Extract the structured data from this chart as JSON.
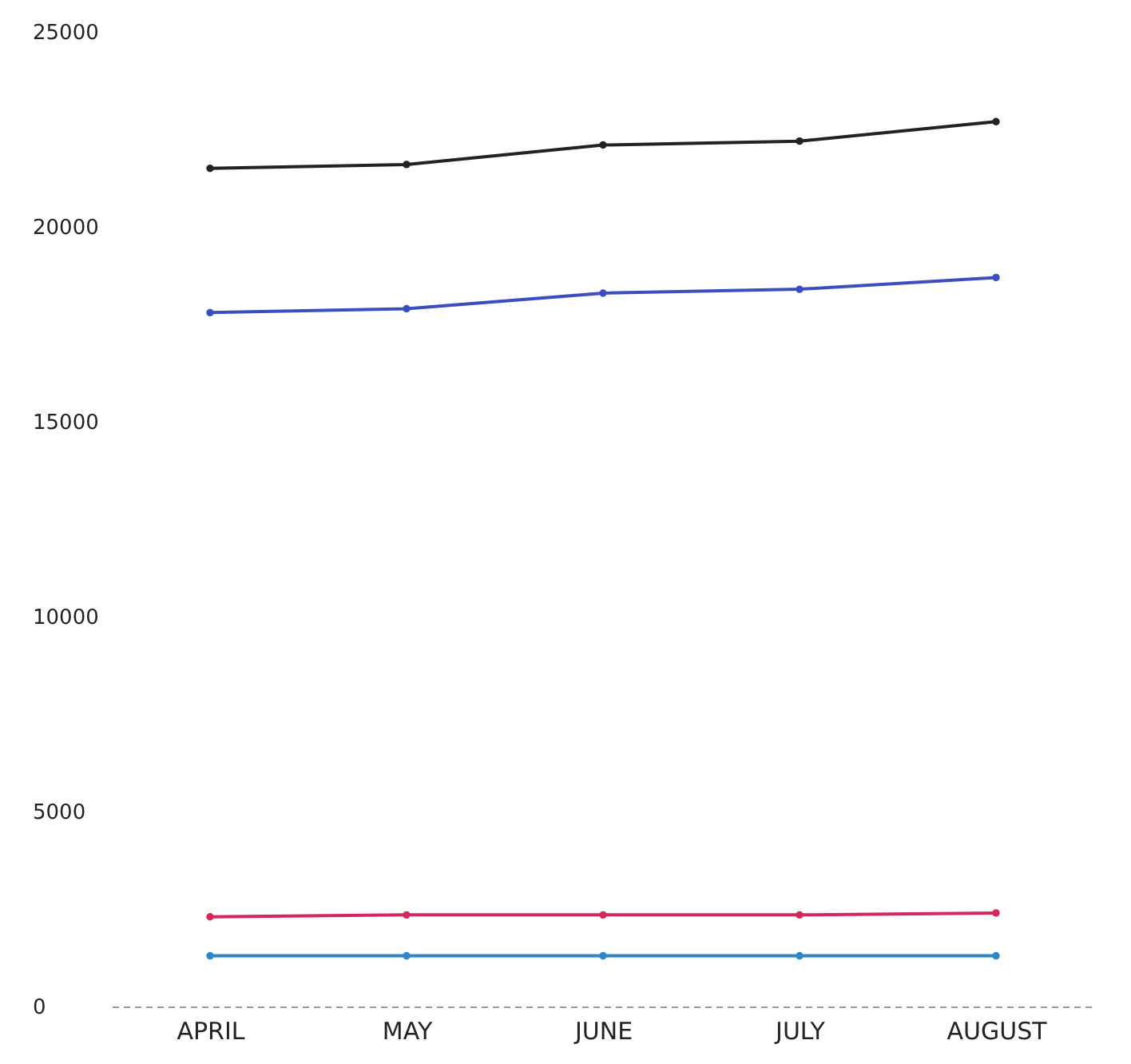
{
  "chart_data": {
    "type": "line",
    "categories": [
      "APRIL",
      "MAY",
      "JUNE",
      "JULY",
      "AUGUST"
    ],
    "series": [
      {
        "color": "#222222",
        "values": [
          21500,
          21600,
          22100,
          22200,
          22700
        ]
      },
      {
        "color": "#3a4ec2",
        "values": [
          17800,
          17900,
          18300,
          18400,
          18700
        ]
      },
      {
        "color": "#d3285a",
        "values": [
          2300,
          2350,
          2350,
          2350,
          2400
        ]
      },
      {
        "color": "#2b86cc",
        "values": [
          1300,
          1300,
          1300,
          1300,
          1300
        ]
      }
    ],
    "ylim": [
      0,
      25000
    ],
    "yticks": [
      0,
      5000,
      10000,
      15000,
      20000,
      25000
    ],
    "grid": false,
    "legend": false,
    "marker": "circle",
    "line_style": "solid"
  }
}
